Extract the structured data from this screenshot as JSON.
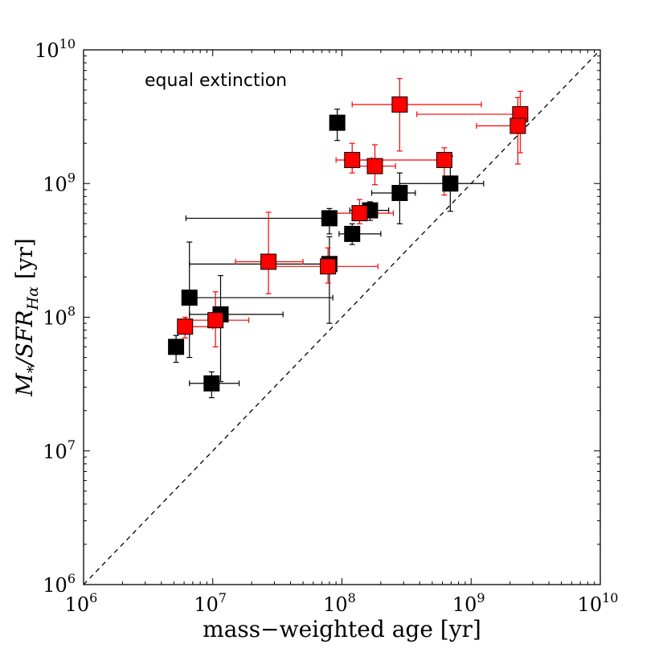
{
  "chart_data": {
    "type": "scatter",
    "x_scale": "log",
    "y_scale": "log",
    "xlim": [
      1000000,
      10000000000
    ],
    "ylim": [
      1000000,
      10000000000
    ],
    "xlabel": "mass−weighted age [yr]",
    "ylabel_parts": {
      "base": "M",
      "sub1": "*",
      "mid": "/SFR",
      "sub2": "Hα",
      "unit": " [yr]"
    },
    "x_ticks": [
      {
        "value": 1000000,
        "base": "10",
        "exp": "6"
      },
      {
        "value": 10000000,
        "base": "10",
        "exp": "7"
      },
      {
        "value": 100000000,
        "base": "10",
        "exp": "8"
      },
      {
        "value": 1000000000,
        "base": "10",
        "exp": "9"
      },
      {
        "value": 10000000000,
        "base": "10",
        "exp": "10"
      }
    ],
    "y_ticks": [
      {
        "value": 1000000,
        "base": "10",
        "exp": "6"
      },
      {
        "value": 10000000,
        "base": "10",
        "exp": "7"
      },
      {
        "value": 100000000,
        "base": "10",
        "exp": "8"
      },
      {
        "value": 1000000000,
        "base": "10",
        "exp": "9"
      },
      {
        "value": 10000000000,
        "base": "10",
        "exp": "10"
      }
    ],
    "annotation": "equal extinction",
    "reference_line": {
      "style": "dashed",
      "relation": "y = x"
    },
    "series": [
      {
        "color": "#000000",
        "points": [
          {
            "x": 5200000.0,
            "y": 60000000.0,
            "xerr": [
              5200000.0,
              5200000.0
            ],
            "yerr": [
              46000000.0,
              73000000.0
            ]
          },
          {
            "x": 9800000.0,
            "y": 32000000.0,
            "xerr": [
              6600000.0,
              16000000.0
            ],
            "yerr": [
              25000000.0,
              39000000.0
            ]
          },
          {
            "x": 11500000.0,
            "y": 105000000.0,
            "xerr": [
              6600000.0,
              35000000.0
            ],
            "yerr": [
              33000000.0,
              205000000.0
            ]
          },
          {
            "x": 6600000.0,
            "y": 140000000.0,
            "xerr": [
              6600000.0,
              85000000.0
            ],
            "yerr": [
              50000000.0,
              365000000.0
            ]
          },
          {
            "x": 80000000.0,
            "y": 250000000.0,
            "xerr": [
              6600000.0,
              88000000.0
            ],
            "yerr": [
              90000000.0,
              400000000.0
            ]
          },
          {
            "x": 80000000.0,
            "y": 550000000.0,
            "xerr": [
              6200000.0,
              89000000.0
            ],
            "yerr": [
              420000000.0,
              650000000.0
            ]
          },
          {
            "x": 120000000.0,
            "y": 420000000.0,
            "xerr": [
              95000000.0,
              200000000.0
            ],
            "yerr": [
              350000000.0,
              500000000.0
            ]
          },
          {
            "x": 165000000.0,
            "y": 630000000.0,
            "xerr": [
              115000000.0,
              230000000.0
            ],
            "yerr": [
              530000000.0,
              730000000.0
            ]
          },
          {
            "x": 280000000.0,
            "y": 850000000.0,
            "xerr": [
              170000000.0,
              370000000.0
            ],
            "yerr": [
              500000000.0,
              1200000000.0
            ]
          },
          {
            "x": 690000000.0,
            "y": 1000000000.0,
            "xerr": [
              280000000.0,
              1250000000.0
            ],
            "yerr": [
              620000000.0,
              1600000000.0
            ]
          },
          {
            "x": 92000000.0,
            "y": 2850000000.0,
            "xerr": [
              92000000.0,
              92000000.0
            ],
            "yerr": [
              2100000000.0,
              3600000000.0
            ]
          }
        ]
      },
      {
        "color": "#ff0000",
        "points": [
          {
            "x": 6100000.0,
            "y": 85000000.0,
            "xerr": [
              5600000.0,
              10000000.0
            ],
            "yerr": [
              70000000.0,
              100000000.0
            ]
          },
          {
            "x": 10500000.0,
            "y": 95000000.0,
            "xerr": [
              6200000.0,
              19000000.0
            ],
            "yerr": [
              60000000.0,
              155000000.0
            ]
          },
          {
            "x": 27000000.0,
            "y": 260000000.0,
            "xerr": [
              15000000.0,
              50000000.0
            ],
            "yerr": [
              150000000.0,
              610000000.0
            ]
          },
          {
            "x": 78000000.0,
            "y": 240000000.0,
            "xerr": [
              25000000.0,
              190000000.0
            ],
            "yerr": [
              180000000.0,
              330000000.0
            ]
          },
          {
            "x": 137000000.0,
            "y": 600000000.0,
            "xerr": [
              90000000.0,
              250000000.0
            ],
            "yerr": [
              500000000.0,
              760000000.0
            ]
          },
          {
            "x": 120000000.0,
            "y": 1500000000.0,
            "xerr": [
              90000000.0,
              170000000.0
            ],
            "yerr": [
              1200000000.0,
              2000000000.0
            ]
          },
          {
            "x": 180000000.0,
            "y": 1350000000.0,
            "xerr": [
              120000000.0,
              260000000.0
            ],
            "yerr": [
              980000000.0,
              1950000000.0
            ]
          },
          {
            "x": 620000000.0,
            "y": 1500000000.0,
            "xerr": [
              125000000.0,
              670000000.0
            ],
            "yerr": [
              820000000.0,
              1850000000.0
            ]
          },
          {
            "x": 280000000.0,
            "y": 3900000000.0,
            "xerr": [
              120000000.0,
              1200000000.0
            ],
            "yerr": [
              1750000000.0,
              6100000000.0
            ]
          },
          {
            "x": 2400000000.0,
            "y": 3300000000.0,
            "xerr": [
              380000000.0,
              2600000000.0
            ],
            "yerr": [
              1700000000.0,
              4900000000.0
            ]
          },
          {
            "x": 2300000000.0,
            "y": 2700000000.0,
            "xerr": [
              1100000000.0,
              2500000000.0
            ],
            "yerr": [
              1400000000.0,
              4400000000.0
            ]
          }
        ]
      }
    ]
  }
}
